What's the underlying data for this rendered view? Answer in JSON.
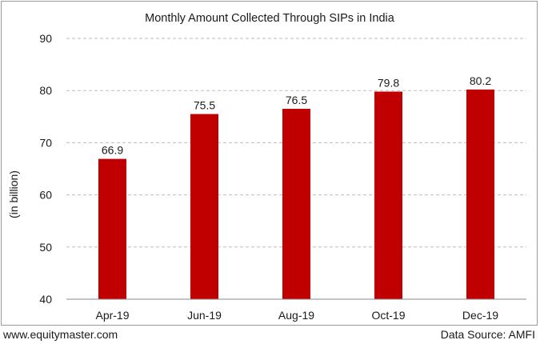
{
  "chart_data": {
    "type": "bar",
    "title": "Monthly Amount Collected Through SIPs in India",
    "ylabel": "(in billion)",
    "xlabel": "",
    "categories": [
      "Apr-19",
      "Jun-19",
      "Aug-19",
      "Oct-19",
      "Dec-19"
    ],
    "values": [
      66.9,
      75.5,
      76.5,
      79.8,
      80.2
    ],
    "value_labels": [
      "66.9",
      "75.5",
      "76.5",
      "79.8",
      "80.2"
    ],
    "ylim": [
      40,
      90
    ],
    "yticks": [
      40,
      50,
      60,
      70,
      80,
      90
    ],
    "grid": true,
    "bar_color": "#c00000"
  },
  "footer": {
    "source_site": "www.equitymaster.com",
    "data_source": "Data Source: AMFI"
  }
}
